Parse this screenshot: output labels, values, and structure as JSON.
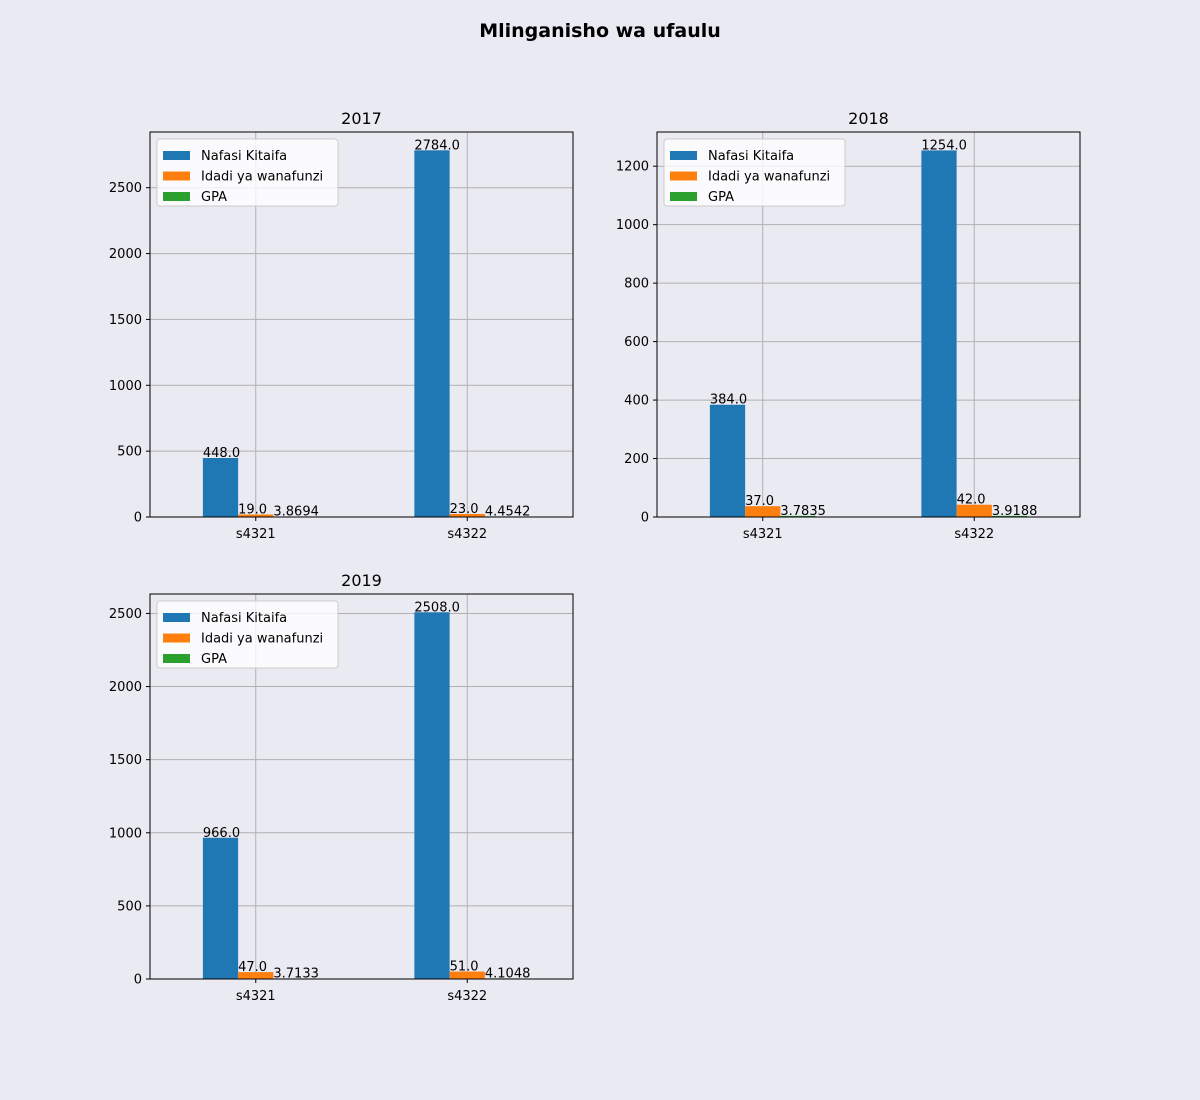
{
  "figure_title": "Mlinganisho wa ufaulu",
  "chart_data": [
    {
      "type": "bar",
      "title": "2017",
      "categories": [
        "s4321",
        "s4322"
      ],
      "series": [
        {
          "name": "Nafasi Kitaifa",
          "color": "#1f77b4",
          "values": [
            448.0,
            2784.0
          ],
          "labels": [
            "448.0",
            "2784.0"
          ]
        },
        {
          "name": "Idadi ya wanafunzi",
          "color": "#ff7f0e",
          "values": [
            19.0,
            23.0
          ],
          "labels": [
            "19.0",
            "23.0"
          ]
        },
        {
          "name": "GPA",
          "color": "#2ca02c",
          "values": [
            3.8694,
            4.4542
          ],
          "labels": [
            "3.8694",
            "4.4542"
          ]
        }
      ],
      "yticks": [
        0,
        500,
        1000,
        1500,
        2000,
        2500
      ],
      "ylim": [
        0,
        2923
      ],
      "grid": true,
      "legend": "upper-left"
    },
    {
      "type": "bar",
      "title": "2018",
      "categories": [
        "s4321",
        "s4322"
      ],
      "series": [
        {
          "name": "Nafasi Kitaifa",
          "color": "#1f77b4",
          "values": [
            384.0,
            1254.0
          ],
          "labels": [
            "384.0",
            "1254.0"
          ]
        },
        {
          "name": "Idadi ya wanafunzi",
          "color": "#ff7f0e",
          "values": [
            37.0,
            42.0
          ],
          "labels": [
            "37.0",
            "42.0"
          ]
        },
        {
          "name": "GPA",
          "color": "#2ca02c",
          "values": [
            3.7835,
            3.9188
          ],
          "labels": [
            "3.7835",
            "3.9188"
          ]
        }
      ],
      "yticks": [
        0,
        200,
        400,
        600,
        800,
        1000,
        1200
      ],
      "ylim": [
        0,
        1317
      ],
      "grid": true,
      "legend": "upper-left"
    },
    {
      "type": "bar",
      "title": "2019",
      "categories": [
        "s4321",
        "s4322"
      ],
      "series": [
        {
          "name": "Nafasi Kitaifa",
          "color": "#1f77b4",
          "values": [
            966.0,
            2508.0
          ],
          "labels": [
            "966.0",
            "2508.0"
          ]
        },
        {
          "name": "Idadi ya wanafunzi",
          "color": "#ff7f0e",
          "values": [
            47.0,
            51.0
          ],
          "labels": [
            "47.0",
            "51.0"
          ]
        },
        {
          "name": "GPA",
          "color": "#2ca02c",
          "values": [
            3.7133,
            4.1048
          ],
          "labels": [
            "3.7133",
            "4.1048"
          ]
        }
      ],
      "yticks": [
        0,
        500,
        1000,
        1500,
        2000,
        2500
      ],
      "ylim": [
        0,
        2633
      ],
      "grid": true,
      "legend": "upper-left"
    }
  ]
}
